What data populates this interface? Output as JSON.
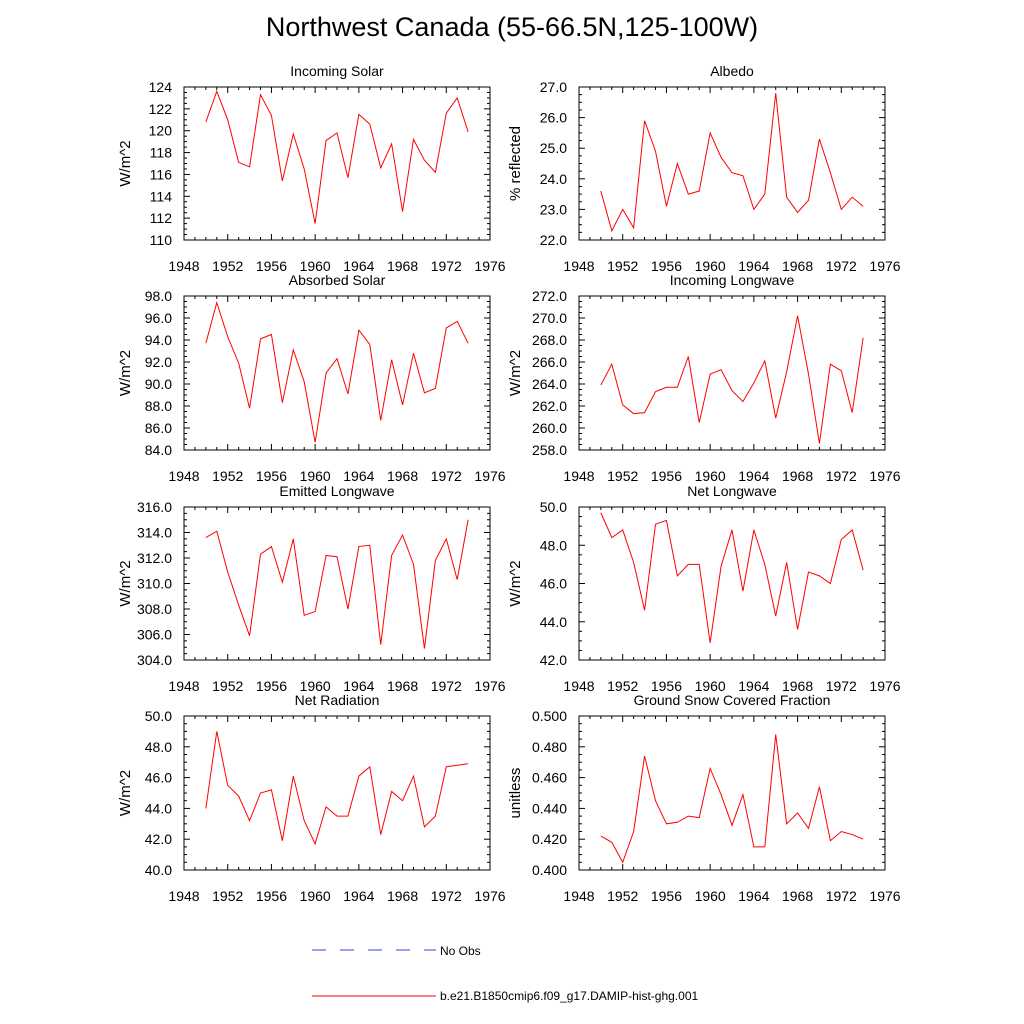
{
  "title": "Northwest Canada (55-66.5N,125-100W)",
  "legend": {
    "entries": [
      {
        "label": "No Obs",
        "color": "#3344cc",
        "style": "dashed"
      },
      {
        "label": "b.e21.B1850cmip6.f09_g17.DAMIP-hist-ghg.001",
        "color": "#ff0000",
        "style": "solid"
      }
    ]
  },
  "chart_data": [
    {
      "type": "line",
      "title": "Incoming Solar",
      "ylabel": "W/m^2",
      "xlim": [
        1948,
        1976
      ],
      "ylim": [
        110,
        124
      ],
      "xticks": [
        "1948",
        "1952",
        "1956",
        "1960",
        "1964",
        "1968",
        "1972",
        "1976"
      ],
      "yticks": [
        "110",
        "112",
        "114",
        "116",
        "118",
        "120",
        "122",
        "124"
      ],
      "x": [
        1950,
        1951,
        1952,
        1953,
        1954,
        1955,
        1956,
        1957,
        1958,
        1959,
        1960,
        1961,
        1962,
        1963,
        1964,
        1965,
        1966,
        1967,
        1968,
        1969,
        1970,
        1971,
        1972,
        1973,
        1974
      ],
      "series": [
        {
          "color": "#ff0000",
          "values": [
            120.8,
            123.6,
            121.0,
            117.1,
            116.7,
            123.3,
            121.4,
            115.4,
            119.7,
            116.5,
            111.5,
            119.1,
            119.8,
            115.7,
            121.5,
            120.6,
            116.6,
            118.8,
            112.6,
            119.2,
            117.3,
            116.2,
            121.6,
            123.0,
            119.9
          ]
        }
      ]
    },
    {
      "type": "line",
      "title": "Albedo",
      "ylabel": "% reflected",
      "xlim": [
        1948,
        1976
      ],
      "ylim": [
        22.0,
        27.0
      ],
      "xticks": [
        "1948",
        "1952",
        "1956",
        "1960",
        "1964",
        "1968",
        "1972",
        "1976"
      ],
      "yticks": [
        "22.0",
        "23.0",
        "24.0",
        "25.0",
        "26.0",
        "27.0"
      ],
      "x": [
        1950,
        1951,
        1952,
        1953,
        1954,
        1955,
        1956,
        1957,
        1958,
        1959,
        1960,
        1961,
        1962,
        1963,
        1964,
        1965,
        1966,
        1967,
        1968,
        1969,
        1970,
        1971,
        1972,
        1973,
        1974
      ],
      "series": [
        {
          "color": "#ff0000",
          "values": [
            23.6,
            22.3,
            23.0,
            22.4,
            25.9,
            24.9,
            23.1,
            24.5,
            23.5,
            23.6,
            25.5,
            24.7,
            24.2,
            24.1,
            23.0,
            23.5,
            26.8,
            23.4,
            22.9,
            23.3,
            25.3,
            24.2,
            23.0,
            23.4,
            23.1
          ]
        }
      ]
    },
    {
      "type": "line",
      "title": "Absorbed Solar",
      "ylabel": "W/m^2",
      "xlim": [
        1948,
        1976
      ],
      "ylim": [
        84.0,
        98.0
      ],
      "xticks": [
        "1948",
        "1952",
        "1956",
        "1960",
        "1964",
        "1968",
        "1972",
        "1976"
      ],
      "yticks": [
        "84.0",
        "86.0",
        "88.0",
        "90.0",
        "92.0",
        "94.0",
        "96.0",
        "98.0"
      ],
      "x": [
        1950,
        1951,
        1952,
        1953,
        1954,
        1955,
        1956,
        1957,
        1958,
        1959,
        1960,
        1961,
        1962,
        1963,
        1964,
        1965,
        1966,
        1967,
        1968,
        1969,
        1970,
        1971,
        1972,
        1973,
        1974
      ],
      "series": [
        {
          "color": "#ff0000",
          "values": [
            93.7,
            97.4,
            94.3,
            91.9,
            87.8,
            94.1,
            94.5,
            88.3,
            93.1,
            90.2,
            84.7,
            91.0,
            92.3,
            89.1,
            94.9,
            93.6,
            86.7,
            92.2,
            88.1,
            92.8,
            89.2,
            89.6,
            95.1,
            95.7,
            93.7
          ]
        }
      ]
    },
    {
      "type": "line",
      "title": "Incoming Longwave",
      "ylabel": "W/m^2",
      "xlim": [
        1948,
        1976
      ],
      "ylim": [
        258.0,
        272.0
      ],
      "xticks": [
        "1948",
        "1952",
        "1956",
        "1960",
        "1964",
        "1968",
        "1972",
        "1976"
      ],
      "yticks": [
        "258.0",
        "260.0",
        "262.0",
        "264.0",
        "266.0",
        "268.0",
        "270.0",
        "272.0"
      ],
      "x": [
        1950,
        1951,
        1952,
        1953,
        1954,
        1955,
        1956,
        1957,
        1958,
        1959,
        1960,
        1961,
        1962,
        1963,
        1964,
        1965,
        1966,
        1967,
        1968,
        1969,
        1970,
        1971,
        1972,
        1973,
        1974
      ],
      "series": [
        {
          "color": "#ff0000",
          "values": [
            263.9,
            265.8,
            262.1,
            261.3,
            261.4,
            263.3,
            263.7,
            263.7,
            266.5,
            260.5,
            264.9,
            265.3,
            263.4,
            262.4,
            264.1,
            266.1,
            260.9,
            265.1,
            270.2,
            264.9,
            258.6,
            265.8,
            265.2,
            261.4,
            268.2
          ]
        }
      ]
    },
    {
      "type": "line",
      "title": "Emitted Longwave",
      "ylabel": "W/m^2",
      "xlim": [
        1948,
        1976
      ],
      "ylim": [
        304.0,
        316.0
      ],
      "xticks": [
        "1948",
        "1952",
        "1956",
        "1960",
        "1964",
        "1968",
        "1972",
        "1976"
      ],
      "yticks": [
        "304.0",
        "306.0",
        "308.0",
        "310.0",
        "312.0",
        "314.0",
        "316.0"
      ],
      "x": [
        1950,
        1951,
        1952,
        1953,
        1954,
        1955,
        1956,
        1957,
        1958,
        1959,
        1960,
        1961,
        1962,
        1963,
        1964,
        1965,
        1966,
        1967,
        1968,
        1969,
        1970,
        1971,
        1972,
        1973,
        1974
      ],
      "series": [
        {
          "color": "#ff0000",
          "values": [
            313.6,
            314.1,
            310.9,
            308.3,
            305.9,
            312.3,
            312.9,
            310.1,
            313.5,
            307.5,
            307.8,
            312.2,
            312.1,
            308.0,
            312.9,
            313.0,
            305.2,
            312.2,
            313.8,
            311.5,
            304.9,
            311.8,
            313.5,
            310.3,
            315.0
          ]
        }
      ]
    },
    {
      "type": "line",
      "title": "Net Longwave",
      "ylabel": "W/m^2",
      "xlim": [
        1948,
        1976
      ],
      "ylim": [
        42.0,
        50.0
      ],
      "xticks": [
        "1948",
        "1952",
        "1956",
        "1960",
        "1964",
        "1968",
        "1972",
        "1976"
      ],
      "yticks": [
        "42.0",
        "44.0",
        "46.0",
        "48.0",
        "50.0"
      ],
      "x": [
        1950,
        1951,
        1952,
        1953,
        1954,
        1955,
        1956,
        1957,
        1958,
        1959,
        1960,
        1961,
        1962,
        1963,
        1964,
        1965,
        1966,
        1967,
        1968,
        1969,
        1970,
        1971,
        1972,
        1973,
        1974
      ],
      "series": [
        {
          "color": "#ff0000",
          "values": [
            49.7,
            48.4,
            48.8,
            47.1,
            44.6,
            49.1,
            49.3,
            46.4,
            47.0,
            47.0,
            42.9,
            46.9,
            48.8,
            45.6,
            48.8,
            47.0,
            44.3,
            47.1,
            43.6,
            46.6,
            46.4,
            46.0,
            48.3,
            48.8,
            46.7
          ]
        }
      ]
    },
    {
      "type": "line",
      "title": "Net Radiation",
      "ylabel": "W/m^2",
      "xlim": [
        1948,
        1976
      ],
      "ylim": [
        40.0,
        50.0
      ],
      "xticks": [
        "1948",
        "1952",
        "1956",
        "1960",
        "1964",
        "1968",
        "1972",
        "1976"
      ],
      "yticks": [
        "40.0",
        "42.0",
        "44.0",
        "46.0",
        "48.0",
        "50.0"
      ],
      "x": [
        1950,
        1951,
        1952,
        1953,
        1954,
        1955,
        1956,
        1957,
        1958,
        1959,
        1960,
        1961,
        1962,
        1963,
        1964,
        1965,
        1966,
        1967,
        1968,
        1969,
        1970,
        1971,
        1972,
        1973,
        1974
      ],
      "series": [
        {
          "color": "#ff0000",
          "values": [
            44.0,
            49.0,
            45.5,
            44.8,
            43.2,
            45.0,
            45.2,
            41.9,
            46.1,
            43.2,
            41.7,
            44.1,
            43.5,
            43.5,
            46.1,
            46.7,
            42.3,
            45.1,
            44.5,
            46.1,
            42.8,
            43.5,
            46.7,
            46.8,
            46.9
          ]
        }
      ]
    },
    {
      "type": "line",
      "title": "Ground Snow Covered Fraction",
      "ylabel": "unitless",
      "xlim": [
        1948,
        1976
      ],
      "ylim": [
        0.4,
        0.5
      ],
      "xticks": [
        "1948",
        "1952",
        "1956",
        "1960",
        "1964",
        "1968",
        "1972",
        "1976"
      ],
      "yticks": [
        "0.400",
        "0.420",
        "0.440",
        "0.460",
        "0.480",
        "0.500"
      ],
      "x": [
        1950,
        1951,
        1952,
        1953,
        1954,
        1955,
        1956,
        1957,
        1958,
        1959,
        1960,
        1961,
        1962,
        1963,
        1964,
        1965,
        1966,
        1967,
        1968,
        1969,
        1970,
        1971,
        1972,
        1973,
        1974
      ],
      "series": [
        {
          "color": "#ff0000",
          "values": [
            0.422,
            0.418,
            0.405,
            0.425,
            0.474,
            0.445,
            0.43,
            0.431,
            0.435,
            0.434,
            0.466,
            0.449,
            0.429,
            0.449,
            0.415,
            0.415,
            0.488,
            0.43,
            0.437,
            0.427,
            0.454,
            0.419,
            0.425,
            0.423,
            0.42
          ]
        }
      ]
    }
  ]
}
